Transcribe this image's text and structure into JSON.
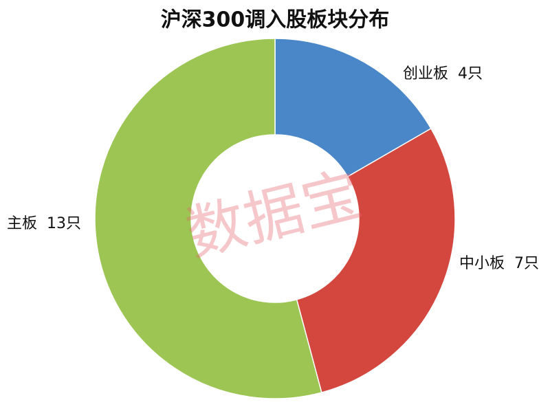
{
  "chart_data": {
    "type": "donut",
    "title": "沪深300调入股板块分布",
    "categories": [
      "创业板",
      "中小板",
      "主板"
    ],
    "values": [
      4,
      7,
      13
    ],
    "value_labels": [
      "4只",
      "7只",
      "13只"
    ],
    "colors": [
      "#4a87c9",
      "#d4473f",
      "#9dc553"
    ],
    "watermark": "数据宝"
  }
}
